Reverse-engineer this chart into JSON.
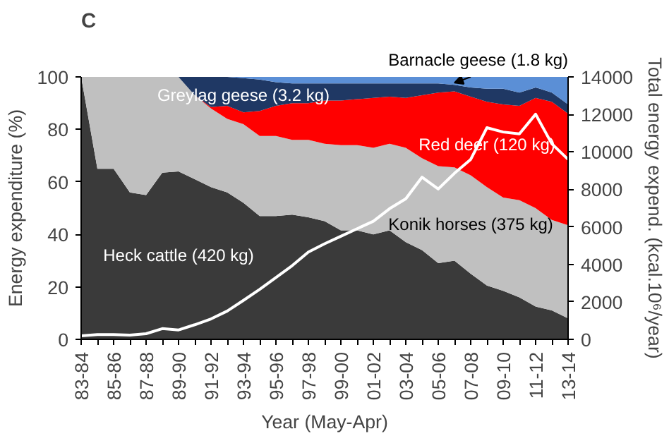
{
  "chart_data": {
    "type": "area",
    "stacked": true,
    "title": "C",
    "xlabel": "Year (May-Apr)",
    "ylabel": "Energy expenditure (%)",
    "y2label": "Total energy expend. (kcal.10⁶/year)",
    "categories": [
      "83-84",
      null,
      "85-86",
      null,
      "87-88",
      null,
      "89-90",
      null,
      "91-92",
      null,
      "93-94",
      null,
      "95-96",
      null,
      "97-98",
      null,
      "99-00",
      null,
      "01-02",
      null,
      "03-04",
      null,
      "05-06",
      null,
      "07-08",
      null,
      "09-10",
      null,
      "11-12",
      null,
      "13-14"
    ],
    "ylim": [
      0,
      100
    ],
    "yticks": [
      0,
      20,
      40,
      60,
      80,
      100
    ],
    "y2lim": [
      0,
      14000
    ],
    "y2ticks": [
      0,
      2000,
      4000,
      6000,
      8000,
      10000,
      12000,
      14000
    ],
    "grid": false,
    "series": [
      {
        "name": "Heck cattle (420 kg)",
        "color": "#3a3a3a",
        "values": [
          100,
          65,
          65,
          56,
          55,
          63.5,
          64,
          61,
          58,
          56,
          52,
          47,
          47,
          47.5,
          46.5,
          45,
          41.5,
          41.5,
          40,
          41.5,
          37,
          34,
          29,
          30,
          25,
          20.5,
          18.5,
          16,
          12.5,
          11,
          8
        ]
      },
      {
        "name": "Konik horses (375 kg)",
        "color": "#c0c0c0",
        "values": [
          0,
          35,
          35,
          44,
          45,
          36.5,
          36,
          32,
          30,
          28,
          30,
          30.5,
          30.5,
          28.5,
          29.5,
          29.5,
          32.5,
          32.5,
          33,
          33,
          36,
          35,
          37,
          35.5,
          37.5,
          37.5,
          35.5,
          37,
          37.5,
          34.5,
          35.5
        ]
      },
      {
        "name": "Red deer (120 kg)",
        "color": "#ff0000",
        "values": [
          0,
          0,
          0,
          0,
          0,
          0,
          0,
          0,
          0.5,
          5,
          4.5,
          9.5,
          11.5,
          14,
          14,
          16.5,
          17,
          17.5,
          19,
          18,
          19,
          24,
          28,
          29,
          30,
          32.5,
          35.5,
          36,
          42,
          45,
          42.5
        ]
      },
      {
        "name": "Greylag geese (3.2 kg)",
        "color": "#1f3864",
        "values": [
          0,
          0,
          0,
          0,
          0,
          0,
          0,
          7,
          11.5,
          11,
          13,
          12,
          9,
          7.5,
          7.5,
          6.5,
          6.5,
          6,
          5.5,
          5,
          5.5,
          4.5,
          3.5,
          2.5,
          3.5,
          5,
          6,
          5,
          4,
          3.5,
          3.5
        ]
      },
      {
        "name": "Barnacle geese (1.8 kg)",
        "color": "#5b8fd6",
        "values": [
          0,
          0,
          0,
          0,
          0,
          0,
          0,
          0,
          0,
          0,
          0.5,
          1,
          2,
          2.5,
          2.5,
          2.5,
          2.5,
          2.5,
          2.5,
          2.5,
          2.5,
          2.5,
          2.5,
          3,
          4,
          4.5,
          4.5,
          6,
          4,
          6,
          10.5
        ]
      },
      {
        "type": "line",
        "axis": "y2",
        "color": "#ffffff",
        "values": [
          190,
          250,
          250,
          230,
          300,
          570,
          500,
          780,
          1090,
          1510,
          2080,
          2670,
          3300,
          3930,
          4660,
          5100,
          5500,
          5900,
          6300,
          6970,
          7500,
          8650,
          8020,
          8860,
          9600,
          11290,
          11060,
          10960,
          12010,
          10430,
          9600
        ]
      }
    ]
  }
}
